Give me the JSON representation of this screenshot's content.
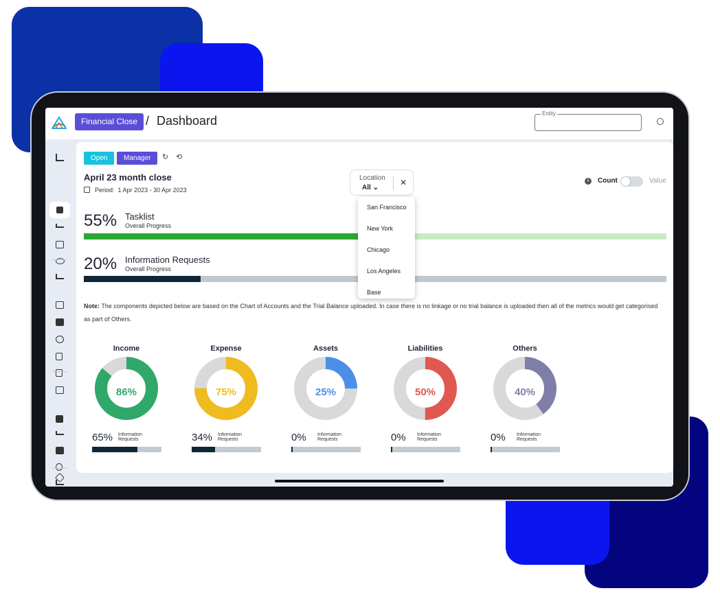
{
  "colors": {
    "brand": "#5a4ed8",
    "open": "#19c2dc",
    "income": "#2fa86a",
    "expense": "#f0bb1e",
    "assets": "#4b8fe8",
    "liabilities": "#e0584f",
    "others": "#7e7ea8",
    "tasklist": "#2aa832",
    "requests": "#0f2637"
  },
  "header": {
    "logo_icon": "triangle-logo-icon",
    "module_button": "Financial Close",
    "separator": "/",
    "page_title": "Dashboard",
    "entity_label": "Entity",
    "entity_value": ""
  },
  "toolbar": {
    "open_label": "Open",
    "manager_label": "Manager",
    "refresh_glyph": "↻",
    "history_glyph": "⟲"
  },
  "close": {
    "title": "April 23 month close",
    "period_label": "Period:",
    "period_value": "1 Apr 2023 - 30 Apr 2023"
  },
  "location": {
    "label": "Location",
    "value": "All",
    "options": [
      "San Francisco",
      "New York",
      "Chicago",
      "Los Angeles",
      "Base"
    ]
  },
  "toggle": {
    "info": "i",
    "count_label": "Count",
    "value_label": "Value",
    "state": "Count"
  },
  "progress": {
    "tasklist": {
      "pct": "55%",
      "value": 0.55,
      "name": "Tasklist",
      "sub": "Overall Progress"
    },
    "requests": {
      "pct": "20%",
      "value": 0.2,
      "name": "Information Requests",
      "sub": "Overall Progress"
    }
  },
  "note": {
    "label": "Note:",
    "text": " The components depicted below are based on the Chart of Accounts and the Trial Balance uploaded. In case there is no linkage or no trial balance is uploaded then all of the metrics would get categorised as part of Others."
  },
  "chart_data": [
    {
      "type": "pie",
      "title": "Income",
      "values": [
        86,
        14
      ],
      "center_label": "86%",
      "ir_pct": "65%",
      "ir_value": 0.65,
      "ir_label_1": "Information",
      "ir_label_2": "Requests"
    },
    {
      "type": "pie",
      "title": "Expense",
      "values": [
        75,
        25
      ],
      "center_label": "75%",
      "ir_pct": "34%",
      "ir_value": 0.34,
      "ir_label_1": "Information",
      "ir_label_2": "Requests"
    },
    {
      "type": "pie",
      "title": "Assets",
      "values": [
        25,
        75
      ],
      "center_label": "25%",
      "ir_pct": "0%",
      "ir_value": 0,
      "ir_label_1": "Information",
      "ir_label_2": "Requests"
    },
    {
      "type": "pie",
      "title": "Liabilities",
      "values": [
        50,
        50
      ],
      "center_label": "50%",
      "ir_pct": "0%",
      "ir_value": 0,
      "ir_label_1": "Information",
      "ir_label_2": "Requests"
    },
    {
      "type": "pie",
      "title": "Others",
      "values": [
        40,
        60
      ],
      "center_label": "40%",
      "ir_pct": "0%",
      "ir_value": 0,
      "ir_label_1": "Information",
      "ir_label_2": "Requests"
    }
  ],
  "sidebar_icons": [
    "collapse-icon",
    "dashboard-icon",
    "checklist-icon",
    "payments-icon",
    "team-icon",
    "trend-icon",
    "reconcile-icon",
    "message-icon",
    "cloud-icon",
    "document-icon",
    "file-icon",
    "payments-icon",
    "hierarchy-icon",
    "checklist-icon",
    "message-icon",
    "location-icon",
    "trend-icon",
    "settings-icon"
  ]
}
